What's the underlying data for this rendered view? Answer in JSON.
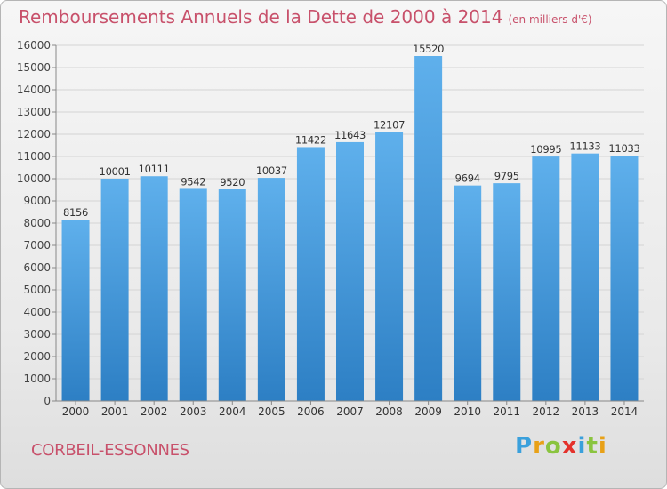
{
  "header": {
    "title": "Remboursements Annuels de la Dette de 2000 à 2014",
    "unit": "(en milliers d'€)"
  },
  "footer": {
    "commune": "CORBEIL-ESSONNES",
    "logo_letters": [
      "P",
      "r",
      "o",
      "x",
      "i",
      "t",
      "i"
    ],
    "logo_colors": [
      "#3aa0dc",
      "#e8a117",
      "#8ac43f",
      "#e4312b",
      "#3aa0dc",
      "#8ac43f",
      "#e8a117"
    ]
  },
  "chart_data": {
    "type": "bar",
    "title": "Remboursements Annuels de la Dette de 2000 à 2014",
    "xlabel": "",
    "ylabel": "",
    "categories": [
      "2000",
      "2001",
      "2002",
      "2003",
      "2004",
      "2005",
      "2006",
      "2007",
      "2008",
      "2009",
      "2010",
      "2011",
      "2012",
      "2013",
      "2014"
    ],
    "values": [
      8156,
      10001,
      10111,
      9542,
      9520,
      10037,
      11422,
      11643,
      12107,
      15520,
      9694,
      9795,
      10995,
      11133,
      11033
    ],
    "ylim": [
      0,
      16000
    ],
    "yticks": [
      0,
      1000,
      2000,
      3000,
      4000,
      5000,
      6000,
      7000,
      8000,
      9000,
      10000,
      11000,
      12000,
      13000,
      14000,
      15000,
      16000
    ],
    "grid": true,
    "bar_color": "#4a9fe0"
  }
}
